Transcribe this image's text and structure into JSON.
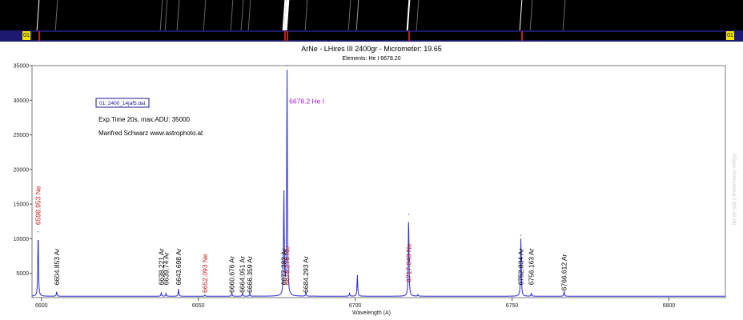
{
  "colors": {
    "spectrum": "#2b2bd6",
    "neon_label": "#c0201e",
    "argon_label": "#000000",
    "helium_label": "#9b1fc4",
    "exp_text": "#1e7d1e",
    "author_text": "#d08a1e",
    "calib_bar": "#1c1a6e",
    "marker_yellow": "#f3e300"
  },
  "header": {
    "marker_left": "01",
    "marker_right": "01"
  },
  "legend": {
    "file_label": "01: 2400_14jaf5.dat",
    "exposure": "Exp.Time 20s, max.ADU: 35000",
    "author": "Manfred Schwarz www.astrophoto.at"
  },
  "watermark": "RSpec Professional 2 (MS 02.04)",
  "chart_data": {
    "type": "line",
    "title": "ArNe - LHires III 2400gr - Micrometer: 19.65",
    "subtitle": "Elements: He I 6678.20",
    "xlabel": "Wavelength (A)",
    "ylabel": "",
    "xlim": [
      6597,
      6818
    ],
    "ylim": [
      1500,
      35000
    ],
    "x_ticks": [
      6600,
      6650,
      6700,
      6750,
      6800
    ],
    "y_ticks": [
      5000,
      10000,
      15000,
      20000,
      25000,
      30000,
      35000
    ],
    "grid": false,
    "baseline": 1700,
    "peaks": [
      {
        "x": 6598.95,
        "y": 11000
      },
      {
        "x": 6604.85,
        "y": 2300
      },
      {
        "x": 6638.2,
        "y": 2200
      },
      {
        "x": 6639.7,
        "y": 2100
      },
      {
        "x": 6643.7,
        "y": 2700
      },
      {
        "x": 6652.1,
        "y": 1850
      },
      {
        "x": 6660.7,
        "y": 2100
      },
      {
        "x": 6664.1,
        "y": 2100
      },
      {
        "x": 6666.4,
        "y": 2100
      },
      {
        "x": 6677.28,
        "y": 16800
      },
      {
        "x": 6678.28,
        "y": 35000
      },
      {
        "x": 6684.3,
        "y": 2200
      },
      {
        "x": 6698.2,
        "y": 2100
      },
      {
        "x": 6700.7,
        "y": 4700
      },
      {
        "x": 6717.04,
        "y": 13500
      },
      {
        "x": 6720.0,
        "y": 1900
      },
      {
        "x": 6752.83,
        "y": 10500
      },
      {
        "x": 6756.16,
        "y": 2100
      },
      {
        "x": 6766.61,
        "y": 2400
      }
    ],
    "annotations": [
      {
        "text": "6598.953 Ne",
        "x": 6598.95,
        "y": 12000,
        "element": "Ne"
      },
      {
        "text": "6604.853 Ar",
        "x": 6604.85,
        "y": 3300,
        "element": "Ar"
      },
      {
        "text": "6638.221 Ar",
        "x": 6638.22,
        "y": 3300,
        "element": "Ar"
      },
      {
        "text": "6639.74 Ar",
        "x": 6639.74,
        "y": 3300,
        "element": "Ar"
      },
      {
        "text": "6643.698 Ar",
        "x": 6643.7,
        "y": 3300,
        "element": "Ar"
      },
      {
        "text": "6652.093 Ne",
        "x": 6652.09,
        "y": 2200,
        "element": "Ne"
      },
      {
        "text": "6660.676 Ar",
        "x": 6660.68,
        "y": 2200,
        "element": "Ar"
      },
      {
        "text": "6664.051 Ar",
        "x": 6664.05,
        "y": 2200,
        "element": "Ar"
      },
      {
        "text": "6666.359 Ar",
        "x": 6666.36,
        "y": 2200,
        "element": "Ar"
      },
      {
        "text": "6677.282 Ar",
        "x": 6677.28,
        "y": 3300,
        "element": "Ar"
      },
      {
        "text": "6678.276 Ne",
        "x": 6678.28,
        "y": 3300,
        "element": "Ne"
      },
      {
        "text": "6678.2 He I",
        "x": 6678.2,
        "y": 29500,
        "element": "He"
      },
      {
        "text": "6684.293 Ar",
        "x": 6684.29,
        "y": 2200,
        "element": "Ar"
      },
      {
        "text": "6717.043 Ne",
        "x": 6717.04,
        "y": 3700,
        "element": "Ne"
      },
      {
        "text": "6752.834 Ar",
        "x": 6752.83,
        "y": 3300,
        "element": "Ar"
      },
      {
        "text": "6756.163 Ar",
        "x": 6756.16,
        "y": 3300,
        "element": "Ar"
      },
      {
        "text": "6766.612 Ar",
        "x": 6766.61,
        "y": 2500,
        "element": "Ar"
      }
    ]
  }
}
